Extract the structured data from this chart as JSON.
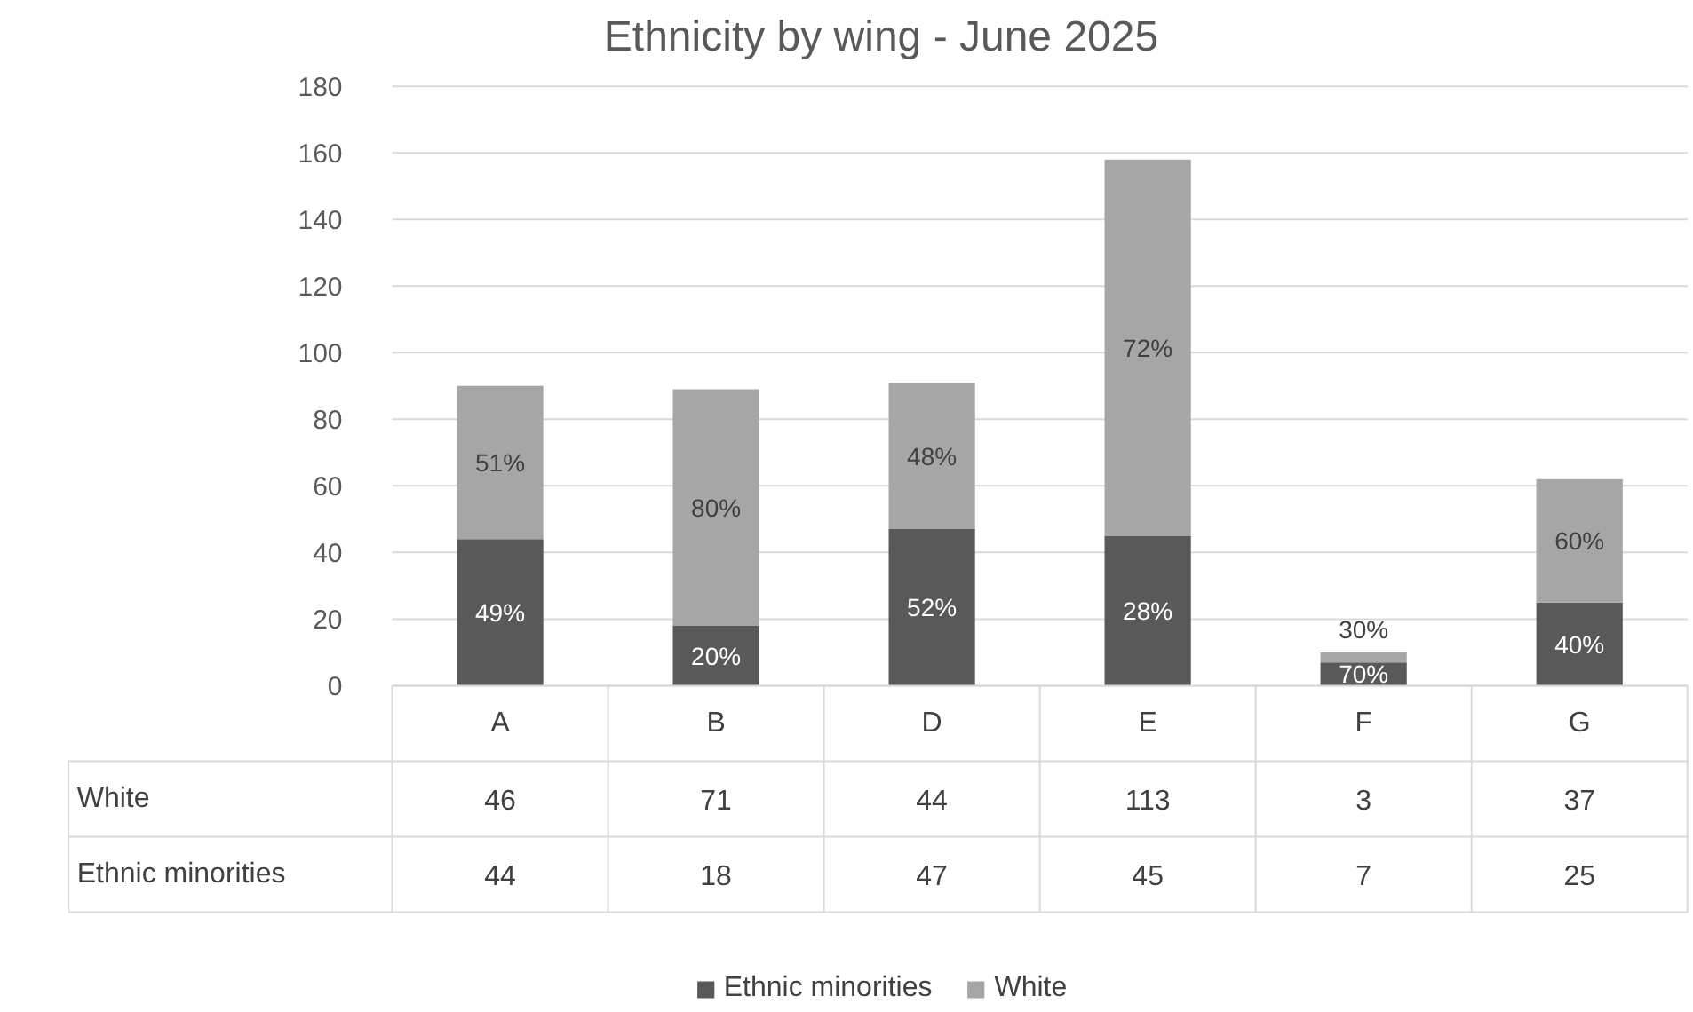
{
  "chart_data": {
    "type": "bar",
    "stacked": true,
    "title": "Ethnicity by wing - June 2025",
    "categories": [
      "A",
      "B",
      "D",
      "E",
      "F",
      "G"
    ],
    "series": [
      {
        "name": "Ethnic minorities",
        "color": "#595959",
        "values": [
          44,
          18,
          47,
          45,
          7,
          25
        ]
      },
      {
        "name": "White",
        "color": "#a6a6a6",
        "values": [
          46,
          71,
          44,
          113,
          3,
          37
        ]
      }
    ],
    "annotations": [
      "49%",
      "51%",
      "20%",
      "80%",
      "52%",
      "48%",
      "28%",
      "72%",
      "70%",
      "30%",
      "40%",
      "60%"
    ],
    "ylim": [
      0,
      180
    ],
    "yticks": [
      0,
      20,
      40,
      60,
      80,
      100,
      120,
      140,
      160,
      180
    ],
    "grid": "y",
    "legend": "bottom",
    "data_labels": true
  }
}
